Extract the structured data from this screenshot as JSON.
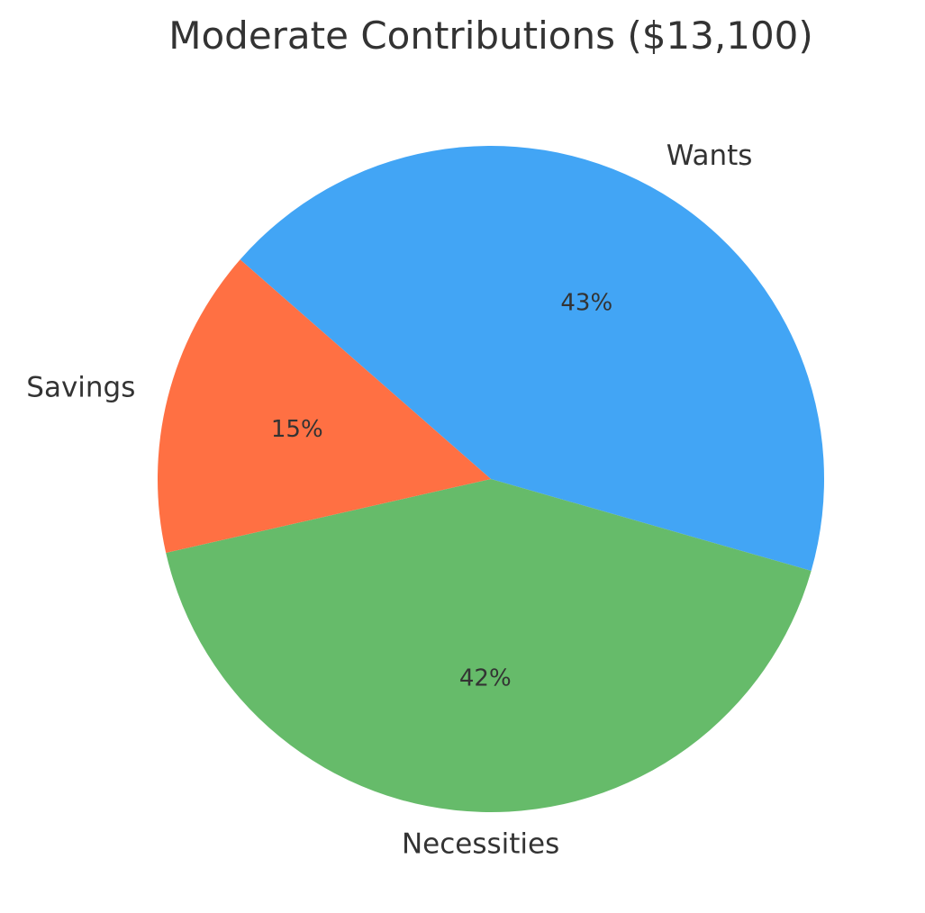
{
  "chart_data": {
    "type": "pie",
    "title": "Moderate Contributions ($13,100)",
    "slices": [
      {
        "label": "Wants",
        "value": 43,
        "display": "43%",
        "color": "#42A5F5"
      },
      {
        "label": "Necessities",
        "value": 42,
        "display": "42%",
        "color": "#66BB6A"
      },
      {
        "label": "Savings",
        "value": 15,
        "display": "15%",
        "color": "#FF7043"
      }
    ],
    "legend": "none"
  }
}
